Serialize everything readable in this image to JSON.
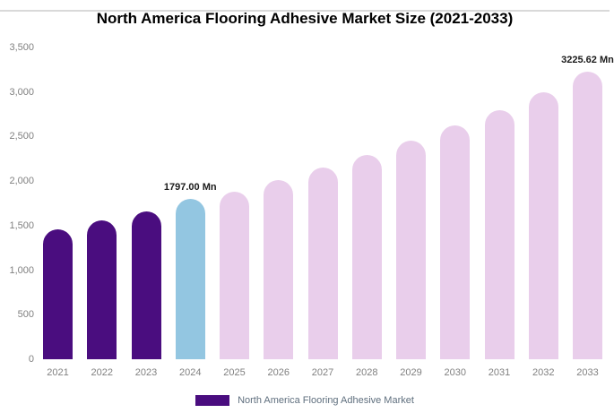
{
  "chart_data": {
    "type": "bar",
    "title": "North America Flooring Adhesive Market Size (2021-2033)",
    "categories": [
      "2021",
      "2022",
      "2023",
      "2024",
      "2025",
      "2026",
      "2027",
      "2028",
      "2029",
      "2030",
      "2031",
      "2032",
      "2033"
    ],
    "values": [
      1460,
      1555,
      1660,
      1797,
      1885,
      2015,
      2150,
      2295,
      2455,
      2625,
      2800,
      3000,
      3225.62
    ],
    "unit": "Mn",
    "xlabel": "",
    "ylabel": "",
    "ylim": [
      0,
      3500
    ],
    "yticks": [
      "3,500",
      "3,000",
      "2,500",
      "2,000",
      "1,500",
      "1,000",
      "500",
      "0"
    ],
    "grid": false,
    "point_colors": [
      "#4a0d7f",
      "#4a0d7f",
      "#4a0d7f",
      "#93c6e1",
      "#e9ceeb",
      "#e9ceeb",
      "#e9ceeb",
      "#e9ceeb",
      "#e9ceeb",
      "#e9ceeb",
      "#e9ceeb",
      "#e9ceeb",
      "#e9ceeb"
    ],
    "annotations": [
      {
        "category": "2024",
        "index": 3,
        "text": "1797.00 Mn"
      },
      {
        "category": "2033",
        "index": 12,
        "text": "3225.62 Mn"
      }
    ],
    "legend": {
      "position": "bottom",
      "items": [
        {
          "label": "North America Flooring Adhesive Market",
          "color": "#4a0d7f"
        }
      ]
    },
    "colors": {
      "historical": "#4a0d7f",
      "current_year": "#93c6e1",
      "forecast": "#e9ceeb",
      "tick_text": "#808080",
      "annotation_text": "#1a1a1a"
    }
  }
}
